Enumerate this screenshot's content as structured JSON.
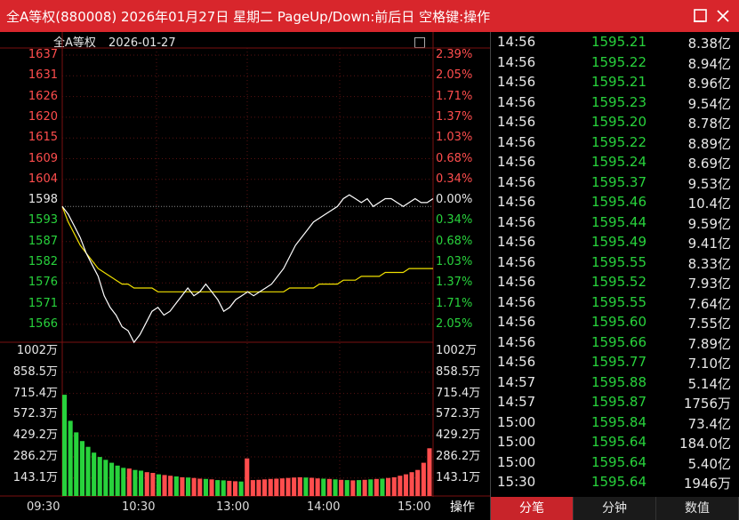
{
  "window": {
    "title": "全A等权(880008) 2026年01月27日 星期二 PageUp/Down:前后日 空格键:操作"
  },
  "chart_header": {
    "name": "全A等权",
    "date": "2026-01-27"
  },
  "colors": {
    "up": "#ff4d4d",
    "down": "#28d23c",
    "price_line": "#ffffff",
    "avg_line": "#f0e000",
    "titlebar": "#d8262c"
  },
  "price_axis": {
    "left": [
      "1637",
      "1631",
      "1626",
      "1620",
      "1615",
      "1609",
      "1604",
      "1598",
      "1593",
      "1587",
      "1582",
      "1576",
      "1571",
      "1566"
    ],
    "right": [
      "2.39%",
      "2.05%",
      "1.71%",
      "1.37%",
      "1.03%",
      "0.68%",
      "0.34%",
      "0.00%",
      "0.34%",
      "0.68%",
      "1.03%",
      "1.37%",
      "1.71%",
      "2.05%"
    ]
  },
  "volume_axis": [
    "1002万",
    "858.5万",
    "715.4万",
    "572.3万",
    "429.2万",
    "286.2万",
    "143.1万"
  ],
  "time_axis": [
    "09:30",
    "10:30",
    "13:00",
    "14:00",
    "15:00"
  ],
  "operate_button": "操作",
  "chart_data": {
    "type": "line",
    "prev_close": 1598,
    "ylim": [
      1563,
      1640
    ],
    "series": [
      {
        "values": [
          1598,
          1596,
          1593,
          1590,
          1586,
          1583,
          1580,
          1575,
          1572,
          1570,
          1567,
          1566,
          1563,
          1565,
          1568,
          1571,
          1572,
          1570,
          1571,
          1573,
          1575,
          1577,
          1575,
          1576,
          1578,
          1576,
          1574,
          1571,
          1572,
          1574,
          1575,
          1576,
          1575,
          1576,
          1577,
          1578,
          1580,
          1582,
          1585,
          1588,
          1590,
          1592,
          1594,
          1595,
          1596,
          1597,
          1598,
          1600,
          1601,
          1600,
          1599,
          1600,
          1598,
          1599,
          1600,
          1600,
          1599,
          1598,
          1599,
          1600,
          1599,
          1599,
          1600
        ]
      },
      {
        "values": [
          1598,
          1594,
          1591,
          1588,
          1586,
          1584,
          1582,
          1581,
          1580,
          1579,
          1578,
          1578,
          1577,
          1577,
          1577,
          1577,
          1576,
          1576,
          1576,
          1576,
          1576,
          1576,
          1576,
          1576,
          1576,
          1576,
          1576,
          1576,
          1576,
          1576,
          1576,
          1576,
          1576,
          1576,
          1576,
          1576,
          1576,
          1576,
          1577,
          1577,
          1577,
          1577,
          1577,
          1578,
          1578,
          1578,
          1578,
          1579,
          1579,
          1579,
          1580,
          1580,
          1580,
          1580,
          1581,
          1581,
          1581,
          1581,
          1582,
          1582,
          1582,
          1582,
          1582
        ]
      }
    ],
    "volume": [
      {
        "v": 700,
        "up": false
      },
      {
        "v": 520,
        "up": false
      },
      {
        "v": 440,
        "up": false
      },
      {
        "v": 380,
        "up": false
      },
      {
        "v": 340,
        "up": false
      },
      {
        "v": 300,
        "up": false
      },
      {
        "v": 270,
        "up": false
      },
      {
        "v": 250,
        "up": false
      },
      {
        "v": 230,
        "up": false
      },
      {
        "v": 210,
        "up": false
      },
      {
        "v": 195,
        "up": false
      },
      {
        "v": 190,
        "up": true
      },
      {
        "v": 180,
        "up": false
      },
      {
        "v": 175,
        "up": false
      },
      {
        "v": 165,
        "up": true
      },
      {
        "v": 160,
        "up": true
      },
      {
        "v": 150,
        "up": false
      },
      {
        "v": 145,
        "up": true
      },
      {
        "v": 140,
        "up": true
      },
      {
        "v": 135,
        "up": false
      },
      {
        "v": 130,
        "up": true
      },
      {
        "v": 128,
        "up": false
      },
      {
        "v": 125,
        "up": true
      },
      {
        "v": 120,
        "up": true
      },
      {
        "v": 118,
        "up": false
      },
      {
        "v": 115,
        "up": true
      },
      {
        "v": 110,
        "up": false
      },
      {
        "v": 108,
        "up": false
      },
      {
        "v": 105,
        "up": true
      },
      {
        "v": 102,
        "up": true
      },
      {
        "v": 100,
        "up": false
      },
      {
        "v": 260,
        "up": true
      },
      {
        "v": 110,
        "up": true
      },
      {
        "v": 112,
        "up": true
      },
      {
        "v": 115,
        "up": true
      },
      {
        "v": 118,
        "up": true
      },
      {
        "v": 120,
        "up": true
      },
      {
        "v": 122,
        "up": true
      },
      {
        "v": 125,
        "up": true
      },
      {
        "v": 128,
        "up": true
      },
      {
        "v": 130,
        "up": true
      },
      {
        "v": 128,
        "up": false
      },
      {
        "v": 126,
        "up": true
      },
      {
        "v": 122,
        "up": true
      },
      {
        "v": 120,
        "up": false
      },
      {
        "v": 118,
        "up": true
      },
      {
        "v": 115,
        "up": false
      },
      {
        "v": 112,
        "up": true
      },
      {
        "v": 110,
        "up": false
      },
      {
        "v": 108,
        "up": true
      },
      {
        "v": 110,
        "up": false
      },
      {
        "v": 112,
        "up": true
      },
      {
        "v": 115,
        "up": false
      },
      {
        "v": 118,
        "up": true
      },
      {
        "v": 120,
        "up": false
      },
      {
        "v": 125,
        "up": true
      },
      {
        "v": 130,
        "up": true
      },
      {
        "v": 140,
        "up": true
      },
      {
        "v": 150,
        "up": true
      },
      {
        "v": 165,
        "up": true
      },
      {
        "v": 180,
        "up": true
      },
      {
        "v": 230,
        "up": true
      },
      {
        "v": 330,
        "up": true
      }
    ]
  },
  "ticks_list": [
    {
      "time": "14:56",
      "price": "1595.21",
      "vol": "8.38亿"
    },
    {
      "time": "14:56",
      "price": "1595.22",
      "vol": "8.94亿"
    },
    {
      "time": "14:56",
      "price": "1595.21",
      "vol": "8.96亿"
    },
    {
      "time": "14:56",
      "price": "1595.23",
      "vol": "9.54亿"
    },
    {
      "time": "14:56",
      "price": "1595.20",
      "vol": "8.78亿"
    },
    {
      "time": "14:56",
      "price": "1595.22",
      "vol": "8.89亿"
    },
    {
      "time": "14:56",
      "price": "1595.24",
      "vol": "8.69亿"
    },
    {
      "time": "14:56",
      "price": "1595.37",
      "vol": "9.53亿"
    },
    {
      "time": "14:56",
      "price": "1595.46",
      "vol": "10.4亿"
    },
    {
      "time": "14:56",
      "price": "1595.44",
      "vol": "9.59亿"
    },
    {
      "time": "14:56",
      "price": "1595.49",
      "vol": "9.41亿"
    },
    {
      "time": "14:56",
      "price": "1595.55",
      "vol": "8.33亿"
    },
    {
      "time": "14:56",
      "price": "1595.52",
      "vol": "7.93亿"
    },
    {
      "time": "14:56",
      "price": "1595.55",
      "vol": "7.64亿"
    },
    {
      "time": "14:56",
      "price": "1595.60",
      "vol": "7.55亿"
    },
    {
      "time": "14:56",
      "price": "1595.66",
      "vol": "7.89亿"
    },
    {
      "time": "14:56",
      "price": "1595.77",
      "vol": "7.10亿"
    },
    {
      "time": "14:57",
      "price": "1595.88",
      "vol": "5.14亿"
    },
    {
      "time": "14:57",
      "price": "1595.87",
      "vol": "1756万"
    },
    {
      "time": "15:00",
      "price": "1595.84",
      "vol": "73.4亿"
    },
    {
      "time": "15:00",
      "price": "1595.64",
      "vol": "184.0亿"
    },
    {
      "time": "15:00",
      "price": "1595.64",
      "vol": "5.40亿"
    },
    {
      "time": "15:30",
      "price": "1595.64",
      "vol": "1946万"
    }
  ],
  "tabs": [
    "分笔",
    "分钟",
    "数值"
  ]
}
